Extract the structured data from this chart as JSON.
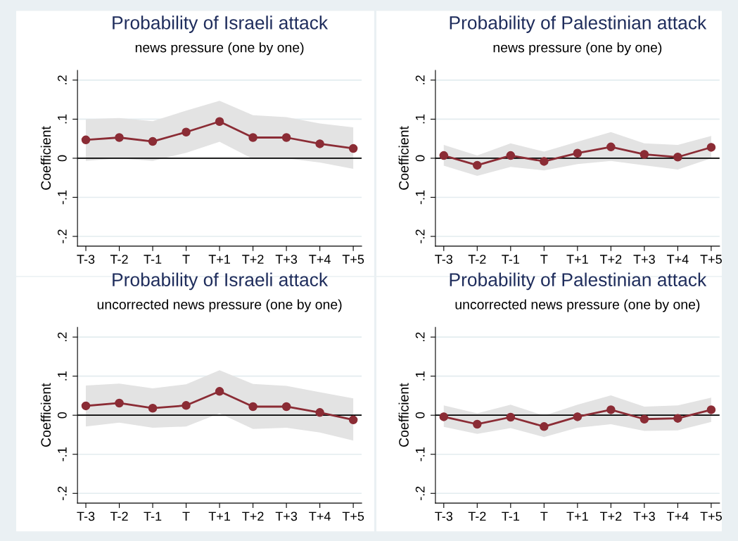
{
  "chart_data": [
    {
      "type": "line",
      "title": "Probability of Israeli attack",
      "subtitle": "news pressure (one by one)",
      "ylabel": "Coefficient",
      "categories": [
        "T-3",
        "T-2",
        "T-1",
        "T",
        "T+1",
        "T+2",
        "T+3",
        "T+4",
        "T+5"
      ],
      "series": [
        {
          "color": "#8b2c35",
          "values": [
            0.047,
            0.053,
            0.043,
            0.067,
            0.094,
            0.053,
            0.053,
            0.037,
            0.025
          ],
          "lower": [
            -0.007,
            0.0,
            -0.007,
            0.014,
            0.042,
            -0.002,
            0.0,
            -0.011,
            -0.027
          ],
          "upper": [
            0.1,
            0.103,
            0.095,
            0.122,
            0.147,
            0.11,
            0.105,
            0.089,
            0.079
          ]
        }
      ],
      "ylim": [
        -0.225,
        0.225
      ],
      "yticks": [
        {
          "value": -0.2,
          "label": "-.2"
        },
        {
          "value": -0.1,
          "label": "-.1"
        },
        0,
        {
          "value": 0.1,
          "label": ".1"
        },
        {
          "value": 0.2,
          "label": ".2"
        }
      ],
      "ref_lines": [
        {
          "axis": "y",
          "value": 0,
          "color": "#000000"
        }
      ],
      "grid": "y",
      "marker": "circle",
      "line_style": "solid"
    },
    {
      "type": "line",
      "title": "Probability of Palestinian attack",
      "subtitle": "news pressure (one by one)",
      "ylabel": "Coefficient",
      "categories": [
        "T-3",
        "T-2",
        "T-1",
        "T",
        "T+1",
        "T+2",
        "T+3",
        "T+4",
        "T+5"
      ],
      "series": [
        {
          "color": "#8b2c35",
          "values": [
            0.007,
            -0.018,
            0.007,
            -0.008,
            0.013,
            0.029,
            0.01,
            0.003,
            0.028
          ],
          "lower": [
            -0.019,
            -0.045,
            -0.022,
            -0.031,
            -0.015,
            -0.007,
            -0.018,
            -0.029,
            0.0
          ],
          "upper": [
            0.034,
            0.007,
            0.038,
            0.017,
            0.042,
            0.067,
            0.038,
            0.034,
            0.057
          ]
        }
      ],
      "ylim": [
        -0.225,
        0.225
      ],
      "yticks": [
        {
          "value": -0.2,
          "label": "-.2"
        },
        {
          "value": -0.1,
          "label": "-.1"
        },
        0,
        {
          "value": 0.1,
          "label": ".1"
        },
        {
          "value": 0.2,
          "label": ".2"
        }
      ],
      "ref_lines": [
        {
          "axis": "y",
          "value": 0,
          "color": "#000000"
        }
      ],
      "grid": "y",
      "marker": "circle",
      "line_style": "solid"
    },
    {
      "type": "line",
      "title": "Probability of Israeli attack",
      "subtitle": "uncorrected news pressure (one by one)",
      "ylabel": "Coefficient",
      "categories": [
        "T-3",
        "T-2",
        "T-1",
        "T",
        "T+1",
        "T+2",
        "T+3",
        "T+4",
        "T+5"
      ],
      "series": [
        {
          "color": "#8b2c35",
          "values": [
            0.024,
            0.031,
            0.018,
            0.025,
            0.061,
            0.022,
            0.022,
            0.007,
            -0.012
          ],
          "lower": [
            -0.029,
            -0.019,
            -0.032,
            -0.029,
            0.005,
            -0.035,
            -0.032,
            -0.044,
            -0.065
          ],
          "upper": [
            0.076,
            0.081,
            0.069,
            0.079,
            0.115,
            0.08,
            0.075,
            0.059,
            0.043
          ]
        }
      ],
      "ylim": [
        -0.225,
        0.225
      ],
      "yticks": [
        {
          "value": -0.2,
          "label": "-.2"
        },
        {
          "value": -0.1,
          "label": "-.1"
        },
        0,
        {
          "value": 0.1,
          "label": ".1"
        },
        {
          "value": 0.2,
          "label": ".2"
        }
      ],
      "ref_lines": [
        {
          "axis": "y",
          "value": 0,
          "color": "#000000"
        }
      ],
      "grid": "y",
      "marker": "circle",
      "line_style": "solid"
    },
    {
      "type": "line",
      "title": "Probability of Palestinian attack",
      "subtitle": "uncorrected news pressure (one by one)",
      "ylabel": "Coefficient",
      "categories": [
        "T-3",
        "T-2",
        "T-1",
        "T",
        "T+1",
        "T+2",
        "T+3",
        "T+4",
        "T+5"
      ],
      "series": [
        {
          "color": "#8b2c35",
          "values": [
            -0.004,
            -0.023,
            -0.005,
            -0.029,
            -0.004,
            0.014,
            -0.01,
            -0.008,
            0.014
          ],
          "lower": [
            -0.03,
            -0.048,
            -0.033,
            -0.056,
            -0.032,
            -0.023,
            -0.04,
            -0.039,
            -0.017
          ],
          "upper": [
            0.025,
            0.005,
            0.027,
            -0.001,
            0.027,
            0.051,
            0.022,
            0.025,
            0.045
          ]
        }
      ],
      "ylim": [
        -0.225,
        0.225
      ],
      "yticks": [
        {
          "value": -0.2,
          "label": "-.2"
        },
        {
          "value": -0.1,
          "label": "-.1"
        },
        0,
        {
          "value": 0.1,
          "label": ".1"
        },
        {
          "value": 0.2,
          "label": ".2"
        }
      ],
      "ref_lines": [
        {
          "axis": "y",
          "value": 0,
          "color": "#000000"
        }
      ],
      "grid": "y",
      "marker": "circle",
      "line_style": "solid"
    }
  ]
}
